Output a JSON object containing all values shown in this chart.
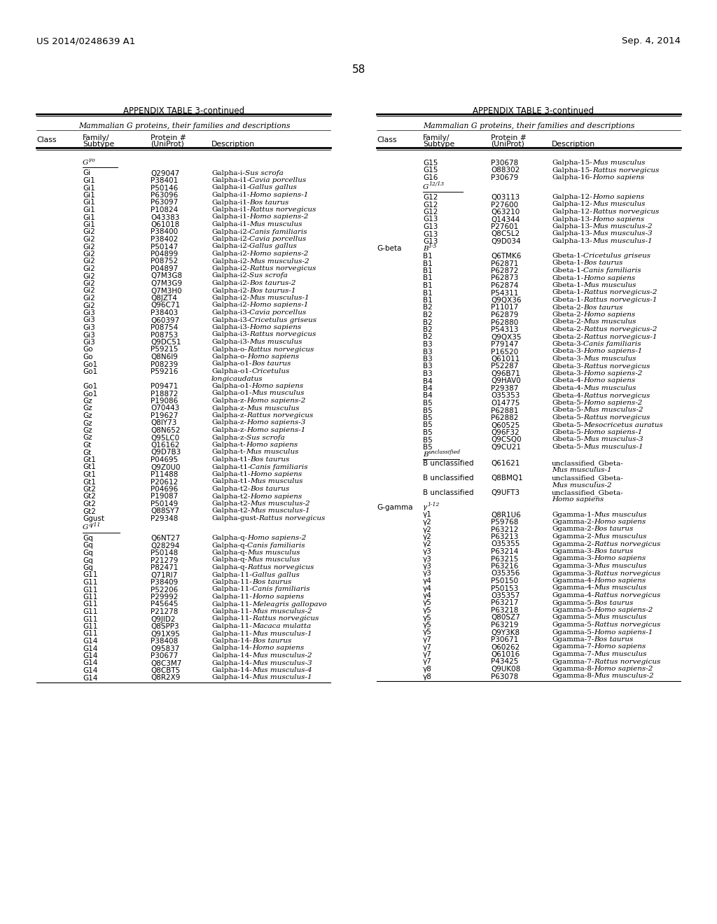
{
  "header_left": "US 2014/0248639 A1",
  "header_right": "Sep. 4, 2014",
  "page_number": "58",
  "table_title": "APPENDIX TABLE 3-continued",
  "table_subtitle": "Mammalian G proteins, their families and descriptions",
  "background": "#ffffff",
  "left_rows": [
    [
      "",
      "Gi",
      "Q29047",
      "Galpha-i-",
      "Sus scrofa"
    ],
    [
      "",
      "Gi1",
      "P38401",
      "Galpha-i1-",
      "Cavia porcellus"
    ],
    [
      "",
      "Gi1",
      "P50146",
      "Galpha-i1-",
      "Gallus gallus"
    ],
    [
      "",
      "Gi1",
      "P63096",
      "Galpha-i1-",
      "Homo sapiens-1"
    ],
    [
      "",
      "Gi1",
      "P63097",
      "Galpha-i1-",
      "Bos taurus"
    ],
    [
      "",
      "Gi1",
      "P10824",
      "Galpha-i1-",
      "Rattus norvegicus"
    ],
    [
      "",
      "Gi1",
      "O43383",
      "Galpha-i1-",
      "Homo sapiens-2"
    ],
    [
      "",
      "Gi1",
      "Q61018",
      "Galpha-i1-",
      "Mus musculus"
    ],
    [
      "",
      "Gi2",
      "P38400",
      "Galpha-i2-",
      "Canis familiaris"
    ],
    [
      "",
      "Gi2",
      "P38402",
      "Galpha-i2-",
      "Cavia porcellus"
    ],
    [
      "",
      "Gi2",
      "P50147",
      "Galpha-i2-",
      "Gallus gallus"
    ],
    [
      "",
      "Gi2",
      "P04899",
      "Galpha-i2-",
      "Homo sapiens-2"
    ],
    [
      "",
      "Gi2",
      "P08752",
      "Galpha-i2-",
      "Mus musculus-2"
    ],
    [
      "",
      "Gi2",
      "P04897",
      "Galpha-i2-",
      "Rattus norvegicus"
    ],
    [
      "",
      "Gi2",
      "Q7M3G8",
      "Galpha-i2-",
      "Sus scrofa"
    ],
    [
      "",
      "Gi2",
      "Q7M3G9",
      "Galpha-i2-",
      "Bos taurus-2"
    ],
    [
      "",
      "Gi2",
      "Q7M3H0",
      "Galpha-i2-",
      "Bos taurus-1"
    ],
    [
      "",
      "Gi2",
      "Q8JZT4",
      "Galpha-i2-",
      "Mus musculus-1"
    ],
    [
      "",
      "Gi2",
      "Q96C71",
      "Galpha-i2-",
      "Homo sapiens-1"
    ],
    [
      "",
      "Gi3",
      "P38403",
      "Galpha-i3-",
      "Cavia porcellus"
    ],
    [
      "",
      "Gi3",
      "Q60397",
      "Galpha-i3-",
      "Cricetulus griseus"
    ],
    [
      "",
      "Gi3",
      "P08754",
      "Galpha-i3-",
      "Homo sapiens"
    ],
    [
      "",
      "Gi3",
      "P08753",
      "Galpha-i3-",
      "Rattus norvegicus"
    ],
    [
      "",
      "Gi3",
      "Q9DC51",
      "Galpha-i3-",
      "Mus musculus"
    ],
    [
      "",
      "Go",
      "P59215",
      "Galpha-o-",
      "Rattus norvegicus"
    ],
    [
      "",
      "Go",
      "Q8N6I9",
      "Galpha-o-",
      "Homo sapiens"
    ],
    [
      "",
      "Go1",
      "P08239",
      "Galpha-o1-",
      "Bos taurus"
    ],
    [
      "WRAP",
      "Go1",
      "P59216",
      "Galpha-o1-",
      "Cricetulus",
      "longicaudatus"
    ],
    [
      "",
      "Go1",
      "P09471",
      "Galpha-o1-",
      "Homo sapiens"
    ],
    [
      "",
      "Go1",
      "P18872",
      "Galpha-o1-",
      "Mus musculus"
    ],
    [
      "",
      "Gz",
      "P19086",
      "Galpha-z-",
      "Homo sapiens-2"
    ],
    [
      "",
      "Gz",
      "O70443",
      "Galpha-z-",
      "Mus musculus"
    ],
    [
      "",
      "Gz",
      "P19627",
      "Galpha-z-",
      "Rattus norvegicus"
    ],
    [
      "",
      "Gz",
      "Q8IY73",
      "Galpha-z-",
      "Homo sapiens-3"
    ],
    [
      "",
      "Gz",
      "Q8N652",
      "Galpha-z-",
      "Homo sapiens-1"
    ],
    [
      "",
      "Gz",
      "Q95LC0",
      "Galpha-z-",
      "Sus scrofa"
    ],
    [
      "",
      "Gt",
      "Q16162",
      "Galpha-t-",
      "Homo sapiens"
    ],
    [
      "",
      "Gt",
      "Q9D7B3",
      "Galpha-t-",
      "Mus musculus"
    ],
    [
      "",
      "Gt1",
      "P04695",
      "Galpha-t1-",
      "Bos taurus"
    ],
    [
      "",
      "Gt1",
      "Q9Z0U0",
      "Galpha-t1-",
      "Canis familiaris"
    ],
    [
      "",
      "Gt1",
      "P11488",
      "Galpha-t1-",
      "Homo sapiens"
    ],
    [
      "",
      "Gt1",
      "P20612",
      "Galpha-t1-",
      "Mus musculus"
    ],
    [
      "",
      "Gt2",
      "P04696",
      "Galpha-t2-",
      "Bos taurus"
    ],
    [
      "",
      "Gt2",
      "P19087",
      "Galpha-t2-",
      "Homo sapiens"
    ],
    [
      "",
      "Gt2",
      "P50149",
      "Galpha-t2-",
      "Mus musculus-2"
    ],
    [
      "",
      "Gt2",
      "Q88SY7",
      "Galpha-t2-",
      "Mus musculus-1"
    ],
    [
      "",
      "Ggust",
      "P29348",
      "Galpha-gust-",
      "Rattus norvegicus"
    ],
    [
      "GROUP_Q11"
    ],
    [
      "",
      "Gq",
      "Q6NT27",
      "Galpha-q-",
      "Homo sapiens-2"
    ],
    [
      "",
      "Gq",
      "Q28294",
      "Galpha-q-",
      "Canis familiaris"
    ],
    [
      "",
      "Gq",
      "P50148",
      "Galpha-q-",
      "Mus musculus"
    ],
    [
      "",
      "Gq",
      "P21279",
      "Galpha-q-",
      "Mus musculus"
    ],
    [
      "",
      "Gq",
      "P82471",
      "Galpha-q-",
      "Rattus norvegicus"
    ],
    [
      "",
      "G11",
      "Q71RI7",
      "Galpha-11-",
      "Gallus gallus"
    ],
    [
      "",
      "G11",
      "P38409",
      "Galpha-11-",
      "Bos taurus"
    ],
    [
      "",
      "G11",
      "P52206",
      "Galpha-11-",
      "Canis familiaris"
    ],
    [
      "",
      "G11",
      "P29992",
      "Galpha-11-",
      "Homo sapiens"
    ],
    [
      "",
      "G11",
      "P45645",
      "Galpha-11-",
      "Meleagris gallopavo"
    ],
    [
      "",
      "G11",
      "P21278",
      "Galpha-11-",
      "Mus musculus-2"
    ],
    [
      "",
      "G11",
      "Q9JID2",
      "Galpha-11-",
      "Rattus norvegicus"
    ],
    [
      "",
      "G11",
      "Q8SPP3",
      "Galpha-11-",
      "Macaca mulatta"
    ],
    [
      "",
      "G11",
      "Q91X95",
      "Galpha-11-",
      "Mus musculus-1"
    ],
    [
      "",
      "G14",
      "P38408",
      "Galpha-14-",
      "Bos taurus"
    ],
    [
      "",
      "G14",
      "O95837",
      "Galpha-14-",
      "Homo sapiens"
    ],
    [
      "",
      "G14",
      "P30677",
      "Galpha-14-",
      "Mus musculus-2"
    ],
    [
      "",
      "G14",
      "Q8C3M7",
      "Galpha-14-",
      "Mus musculus-3"
    ],
    [
      "",
      "G14",
      "Q8CBT5",
      "Galpha-14-",
      "Mus musculus-4"
    ],
    [
      "",
      "G14",
      "Q8R2X9",
      "Galpha-14-",
      "Mus musculus-1"
    ]
  ],
  "right_rows": [
    [
      "",
      "G15",
      "P30678",
      "Galpha-15-",
      "Mus musculus"
    ],
    [
      "",
      "G15",
      "O88302",
      "Galpha-15-",
      "Rattus norvegicus"
    ],
    [
      "",
      "G16",
      "P30679",
      "Galpha-16-",
      "Homo sapiens"
    ],
    [
      "GROUP_1213"
    ],
    [
      "",
      "G12",
      "Q03113",
      "Galpha-12-",
      "Homo sapiens"
    ],
    [
      "",
      "G12",
      "P27600",
      "Galpha-12-",
      "Mus musculus"
    ],
    [
      "",
      "G12",
      "Q63210",
      "Galpha-12-",
      "Rattus norvegicus"
    ],
    [
      "",
      "G13",
      "Q14344",
      "Galpha-13-",
      "Homo sapiens"
    ],
    [
      "",
      "G13",
      "P27601",
      "Galpha-13-",
      "Mus musculus-2"
    ],
    [
      "",
      "G13",
      "Q8C5L2",
      "Galpha-13-",
      "Mus musculus-3"
    ],
    [
      "",
      "G13",
      "Q9D034",
      "Galpha-13-",
      "Mus musculus-1"
    ],
    [
      "SECT_GBETA"
    ],
    [
      "",
      "B1",
      "Q6TMK6",
      "Gbeta-1-",
      "Cricetulus griseus"
    ],
    [
      "",
      "B1",
      "P62871",
      "Gbeta-1-",
      "Bos taurus"
    ],
    [
      "",
      "B1",
      "P62872",
      "Gbeta-1-",
      "Canis familiaris"
    ],
    [
      "",
      "B1",
      "P62873",
      "Gbeta-1-",
      "Homo sapiens"
    ],
    [
      "",
      "B1",
      "P62874",
      "Gbeta-1-",
      "Mus musculus"
    ],
    [
      "",
      "B1",
      "P54311",
      "Gbeta-1-",
      "Rattus norvegicus-2"
    ],
    [
      "",
      "B1",
      "Q9QX36",
      "Gbeta-1-",
      "Rattus norvegicus-1"
    ],
    [
      "",
      "B2",
      "P11017",
      "Gbeta-2-",
      "Bos taurus"
    ],
    [
      "",
      "B2",
      "P62879",
      "Gbeta-2-",
      "Homo sapiens"
    ],
    [
      "",
      "B2",
      "P62880",
      "Gbeta-2-",
      "Mus musculus"
    ],
    [
      "",
      "B2",
      "P54313",
      "Gbeta-2-",
      "Rattus norvegicus-2"
    ],
    [
      "",
      "B2",
      "Q9QX35",
      "Gbeta-2-",
      "Rattus norvegicus-1"
    ],
    [
      "",
      "B3",
      "P79147",
      "Gbeta-3-",
      "Canis familiaris"
    ],
    [
      "",
      "B3",
      "P16520",
      "Gbeta-3-",
      "Homo sapiens-1"
    ],
    [
      "",
      "B3",
      "Q61011",
      "Gbeta-3-",
      "Mus musculus"
    ],
    [
      "",
      "B3",
      "P52287",
      "Gbeta-3-",
      "Rattus norvegicus"
    ],
    [
      "",
      "B3",
      "Q96B71",
      "Gbeta-3-",
      "Homo sapiens-2"
    ],
    [
      "",
      "B4",
      "Q9HAV0",
      "Gbeta-4-",
      "Homo sapiens"
    ],
    [
      "",
      "B4",
      "P29387",
      "Gbeta-4-",
      "Mus musculus"
    ],
    [
      "",
      "B4",
      "O35353",
      "Gbeta-4-",
      "Rattus norvegicus"
    ],
    [
      "",
      "B5",
      "O14775",
      "Gbeta-5-",
      "Homo sapiens-2"
    ],
    [
      "",
      "B5",
      "P62881",
      "Gbeta-5-",
      "Mus musculus-2"
    ],
    [
      "",
      "B5",
      "P62882",
      "Gbeta-5-",
      "Rattus norvegicus"
    ],
    [
      "",
      "B5",
      "Q60525",
      "Gbeta-5-",
      "Mesocricetus auratus"
    ],
    [
      "",
      "B5",
      "Q96F32",
      "Gbeta-5-",
      "Homo sapiens-1"
    ],
    [
      "",
      "B5",
      "Q9CSQ0",
      "Gbeta-5-",
      "Mus musculus-3"
    ],
    [
      "",
      "B5",
      "Q9CU21",
      "Gbeta-5-",
      "Mus musculus-1"
    ],
    [
      "SECT_BUNCLASS"
    ],
    [
      "WRAP2",
      "B unclassified",
      "Q61621",
      "unclassified_Gbeta-",
      "Mus musculus-1"
    ],
    [
      "WRAP2",
      "B unclassified",
      "Q8BMQ1",
      "unclassified_Gbeta-",
      "Mus musculus-2"
    ],
    [
      "WRAP2",
      "B unclassified",
      "Q9UFT3",
      "unclassified_Gbeta-",
      "Homo sapiens"
    ],
    [
      "SECT_GGAMMA"
    ],
    [
      "",
      "γ1",
      "Q8R1U6",
      "Ggamma-1-",
      "Mus musculus"
    ],
    [
      "",
      "γ2",
      "P59768",
      "Ggamma-2-",
      "Homo sapiens"
    ],
    [
      "",
      "γ2",
      "P63212",
      "Ggamma-2-",
      "Bos taurus"
    ],
    [
      "",
      "γ2",
      "P63213",
      "Ggamma-2-",
      "Mus musculus"
    ],
    [
      "",
      "γ2",
      "O35355",
      "Ggamma-2-",
      "Rattus norvegicus"
    ],
    [
      "",
      "γ3",
      "P63214",
      "Ggamma-3-",
      "Bos taurus"
    ],
    [
      "",
      "γ3",
      "P63215",
      "Ggamma-3-",
      "Homo sapiens"
    ],
    [
      "",
      "γ3",
      "P63216",
      "Ggamma-3-",
      "Mus musculus"
    ],
    [
      "",
      "γ3",
      "O35356",
      "Ggamma-3-",
      "Rattus norvegicus"
    ],
    [
      "",
      "γ4",
      "P50150",
      "Ggamma-4-",
      "Homo sapiens"
    ],
    [
      "",
      "γ4",
      "P50153",
      "Ggamma-4-",
      "Mus musculus"
    ],
    [
      "",
      "γ4",
      "O35357",
      "Ggamma-4-",
      "Rattus norvegicus"
    ],
    [
      "",
      "γ5",
      "P63217",
      "Ggamma-5-",
      "Bos taurus"
    ],
    [
      "",
      "γ5",
      "P63218",
      "Ggamma-5-",
      "Homo sapiens-2"
    ],
    [
      "",
      "γ5",
      "Q80SZ7",
      "Ggamma-5-",
      "Mus musculus"
    ],
    [
      "",
      "γ5",
      "P63219",
      "Ggamma-5-",
      "Rattus norvegicus"
    ],
    [
      "",
      "γ5",
      "Q9Y3K8",
      "Ggamma-5-",
      "Homo sapiens-1"
    ],
    [
      "",
      "γ7",
      "P30671",
      "Ggamma-7-",
      "Bos taurus"
    ],
    [
      "",
      "γ7",
      "O60262",
      "Ggamma-7-",
      "Homo sapiens"
    ],
    [
      "",
      "γ7",
      "Q61016",
      "Ggamma-7-",
      "Mus musculus"
    ],
    [
      "",
      "γ7",
      "P43425",
      "Ggamma-7-",
      "Rattus norvegicus"
    ],
    [
      "",
      "γ8",
      "Q9UK08",
      "Ggamma-8-",
      "Homo sapiens-2"
    ],
    [
      "",
      "γ8",
      "P63078",
      "Ggamma-8-",
      "Mus musculus-2"
    ]
  ]
}
